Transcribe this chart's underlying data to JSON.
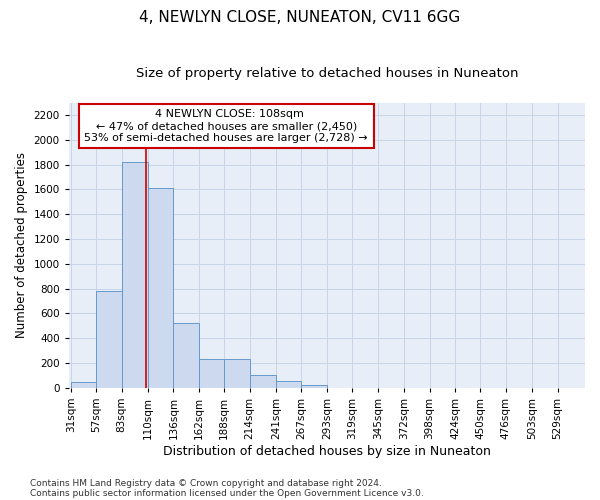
{
  "title": "4, NEWLYN CLOSE, NUNEATON, CV11 6GG",
  "subtitle": "Size of property relative to detached houses in Nuneaton",
  "xlabel": "Distribution of detached houses by size in Nuneaton",
  "ylabel": "Number of detached properties",
  "footer_line1": "Contains HM Land Registry data © Crown copyright and database right 2024.",
  "footer_line2": "Contains public sector information licensed under the Open Government Licence v3.0.",
  "bar_edges": [
    31,
    57,
    83,
    110,
    136,
    162,
    188,
    214,
    241,
    267,
    293,
    319,
    345,
    372,
    398,
    424,
    450,
    476,
    503,
    529,
    555
  ],
  "bar_heights": [
    50,
    780,
    1820,
    1610,
    520,
    230,
    230,
    105,
    55,
    25,
    0,
    0,
    0,
    0,
    0,
    0,
    0,
    0,
    0,
    0
  ],
  "bar_color": "#ccd9ee",
  "bar_edge_color": "#6699cc",
  "property_size": 108,
  "annotation_line1": "4 NEWLYN CLOSE: 108sqm",
  "annotation_line2": "← 47% of detached houses are smaller (2,450)",
  "annotation_line3": "53% of semi-detached houses are larger (2,728) →",
  "vline_color": "#cc0000",
  "ylim": [
    0,
    2300
  ],
  "yticks": [
    0,
    200,
    400,
    600,
    800,
    1000,
    1200,
    1400,
    1600,
    1800,
    2000,
    2200
  ],
  "grid_color": "#c8d4e8",
  "background_color": "#e8eef8",
  "title_fontsize": 11,
  "subtitle_fontsize": 9.5,
  "xlabel_fontsize": 9,
  "ylabel_fontsize": 8.5,
  "tick_fontsize": 7.5,
  "annotation_fontsize": 8,
  "footer_fontsize": 6.5
}
